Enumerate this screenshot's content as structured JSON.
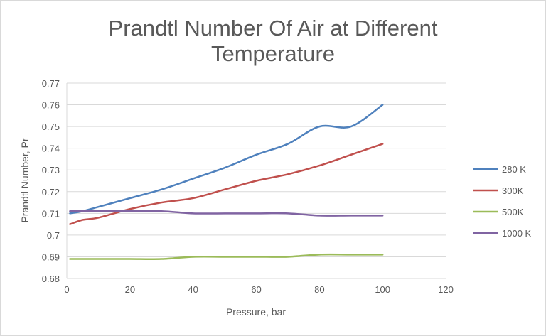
{
  "chart_data": {
    "type": "line",
    "title": "Prandtl Number Of Air at Different Temperature",
    "title_lines": [
      "Prandtl Number Of Air at Different",
      "Temperature"
    ],
    "xlabel": "Pressure, bar",
    "ylabel": "Prandtl Number, Pr",
    "xlim": [
      0,
      120
    ],
    "ylim": [
      0.68,
      0.77
    ],
    "xticks": [
      "0",
      "20",
      "40",
      "60",
      "80",
      "100",
      "120"
    ],
    "yticks": [
      "0.68",
      "0.69",
      "0.7",
      "0.71",
      "0.72",
      "0.73",
      "0.74",
      "0.75",
      "0.76",
      "0.77"
    ],
    "grid": true,
    "legend_position": "right",
    "smooth": true,
    "x": [
      1,
      5,
      10,
      20,
      30,
      40,
      50,
      60,
      70,
      80,
      90,
      100
    ],
    "series": [
      {
        "name": "280 K",
        "color": "#4f81bd",
        "values": [
          0.71,
          0.711,
          0.713,
          0.717,
          0.721,
          0.726,
          0.731,
          0.737,
          0.742,
          0.75,
          0.75,
          0.76
        ]
      },
      {
        "name": "300K",
        "color": "#c0504d",
        "values": [
          0.705,
          0.707,
          0.708,
          0.712,
          0.715,
          0.717,
          0.721,
          0.725,
          0.728,
          0.732,
          0.737,
          0.742
        ]
      },
      {
        "name": "500K",
        "color": "#9bbb59",
        "values": [
          0.689,
          0.689,
          0.689,
          0.689,
          0.689,
          0.69,
          0.69,
          0.69,
          0.69,
          0.691,
          0.691,
          0.691
        ]
      },
      {
        "name": "1000 K",
        "color": "#8064a2",
        "values": [
          0.711,
          0.711,
          0.711,
          0.711,
          0.711,
          0.71,
          0.71,
          0.71,
          0.71,
          0.709,
          0.709,
          0.709
        ]
      }
    ]
  }
}
